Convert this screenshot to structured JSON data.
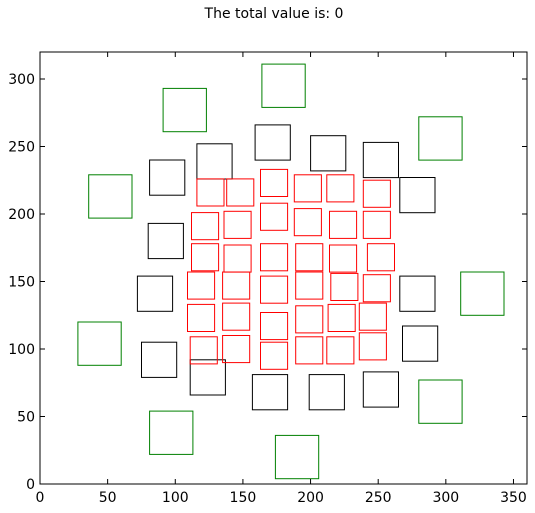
{
  "title": "The total value is: 0",
  "chart_data": {
    "type": "scatter",
    "title": "The total value is: 0",
    "xlabel": "",
    "ylabel": "",
    "xlim": [
      0,
      360
    ],
    "ylim": [
      0,
      320
    ],
    "xticks": [
      0,
      50,
      100,
      150,
      200,
      250,
      300,
      350
    ],
    "yticks": [
      0,
      50,
      100,
      150,
      200,
      250,
      300
    ],
    "grid": false,
    "marker": "open-square",
    "series": [
      {
        "color": "#008000",
        "size": 32,
        "points": [
          [
            180,
            295
          ],
          [
            107,
            277
          ],
          [
            296,
            256
          ],
          [
            52,
            213
          ],
          [
            327,
            141
          ],
          [
            44,
            104
          ],
          [
            296,
            61
          ],
          [
            97,
            38
          ],
          [
            190,
            20
          ]
        ]
      },
      {
        "color": "#000000",
        "size": 26,
        "points": [
          [
            172,
            253
          ],
          [
            129,
            239
          ],
          [
            213,
            245
          ],
          [
            252,
            240
          ],
          [
            94,
            227
          ],
          [
            279,
            214
          ],
          [
            93,
            180
          ],
          [
            85,
            141
          ],
          [
            279,
            141
          ],
          [
            281,
            104
          ],
          [
            88,
            92
          ],
          [
            124,
            79
          ],
          [
            170,
            68
          ],
          [
            212,
            68
          ],
          [
            252,
            70
          ]
        ]
      },
      {
        "color": "#ff0000",
        "size": 20,
        "points": [
          [
            173,
            223
          ],
          [
            126,
            216
          ],
          [
            148,
            216
          ],
          [
            198,
            219
          ],
          [
            222,
            219
          ],
          [
            249,
            215
          ],
          [
            173,
            198
          ],
          [
            122,
            191
          ],
          [
            146,
            192
          ],
          [
            198,
            194
          ],
          [
            224,
            192
          ],
          [
            249,
            192
          ],
          [
            122,
            168
          ],
          [
            146,
            167
          ],
          [
            173,
            168
          ],
          [
            199,
            168
          ],
          [
            224,
            167
          ],
          [
            252,
            168
          ],
          [
            119,
            147
          ],
          [
            145,
            147
          ],
          [
            173,
            144
          ],
          [
            199,
            147
          ],
          [
            225,
            146
          ],
          [
            249,
            145
          ],
          [
            119,
            123
          ],
          [
            145,
            124
          ],
          [
            173,
            117
          ],
          [
            199,
            122
          ],
          [
            223,
            123
          ],
          [
            246,
            124
          ],
          [
            121,
            99
          ],
          [
            145,
            100
          ],
          [
            173,
            95
          ],
          [
            199,
            99
          ],
          [
            222,
            99
          ],
          [
            246,
            102
          ]
        ]
      }
    ]
  }
}
